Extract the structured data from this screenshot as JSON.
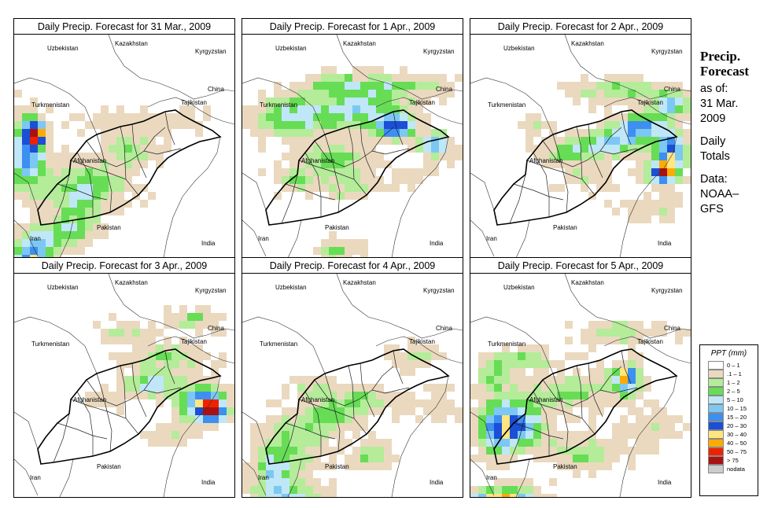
{
  "panels": [
    {
      "title": "Daily Precip. Forecast for  31 Mar., 2009",
      "pattern": "west"
    },
    {
      "title": "Daily Precip. Forecast for  1 Apr., 2009",
      "pattern": "north"
    },
    {
      "title": "Daily Precip. Forecast for  2 Apr., 2009",
      "pattern": "east"
    },
    {
      "title": "Daily Precip. Forecast for  3 Apr., 2009",
      "pattern": "northeast"
    },
    {
      "title": "Daily Precip. Forecast for  4 Apr., 2009",
      "pattern": "south"
    },
    {
      "title": "Daily Precip. Forecast for  5 Apr., 2009",
      "pattern": "west2"
    }
  ],
  "countries": {
    "uzbekistan": "Uzbekistan",
    "kazakhstan": "Kazakhstan",
    "kyrgyzstan": "Kyrgyzstan",
    "turkmenistan": "Turkmenistan",
    "tajikistan": "Tajikistan",
    "china": "China",
    "afghanistan": "Afghanistan",
    "pakistan": "Pakistan",
    "iran": "Iran",
    "india": "India"
  },
  "side": {
    "heading_line1": "Precip.",
    "heading_line2": "Forecast",
    "as_of": "as of:",
    "date_line1": "31 Mar.",
    "date_line2": "2009",
    "totals_line1": "Daily",
    "totals_line2": "Totals",
    "data_line1": "Data:",
    "data_line2": "NOAA–",
    "data_line3": "GFS"
  },
  "legend": {
    "title": "PPT (mm)",
    "items": [
      {
        "label": "0 – 1",
        "color": "#ffffff"
      },
      {
        "label": ".1 – 1",
        "color": "#ead9bf"
      },
      {
        "label": "1 – 2",
        "color": "#b4ec9a"
      },
      {
        "label": "2 – 5",
        "color": "#66dd55"
      },
      {
        "label": "5 – 10",
        "color": "#bfe7f7"
      },
      {
        "label": "10 – 15",
        "color": "#7cc8f2"
      },
      {
        "label": "15 – 20",
        "color": "#3d8ff0"
      },
      {
        "label": "20 – 30",
        "color": "#1a4fd6"
      },
      {
        "label": "30 – 40",
        "color": "#ffe680"
      },
      {
        "label": "40 – 50",
        "color": "#ffaa00"
      },
      {
        "label": "50 – 75",
        "color": "#ee2200"
      },
      {
        "label": "> 75",
        "color": "#aa1111"
      },
      {
        "label": "nodata",
        "color": "#cccccc"
      }
    ]
  }
}
